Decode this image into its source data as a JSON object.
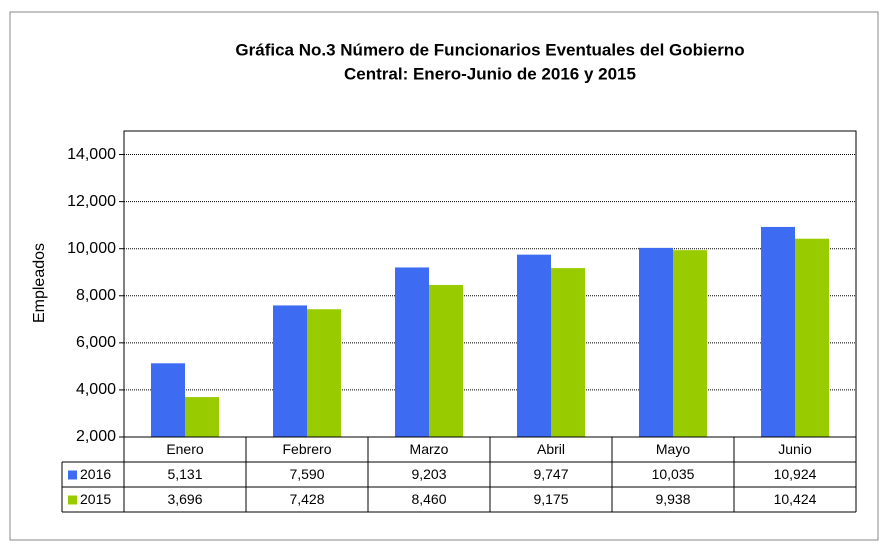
{
  "chart_data": {
    "type": "bar",
    "title": "Gráfica No.3 Número de Funcionarios Eventuales del Gobierno",
    "subtitle": "Central: Enero-Junio de 2016 y 2015",
    "y_label": "Empleados",
    "categories": [
      "Enero",
      "Febrero",
      "Marzo",
      "Abril",
      "Mayo",
      "Junio"
    ],
    "series": [
      {
        "name": "2016",
        "color": "#3d6cf2",
        "values": [
          5131,
          7590,
          9203,
          9747,
          10035,
          10924
        ],
        "value_labels": [
          "5,131",
          "7,590",
          "9,203",
          "9,747",
          "10,035",
          "10,924"
        ]
      },
      {
        "name": "2015",
        "color": "#99cc00",
        "values": [
          3696,
          7428,
          8460,
          9175,
          9938,
          10424
        ],
        "value_labels": [
          "3,696",
          "7,428",
          "8,460",
          "9,175",
          "9,938",
          "10,424"
        ]
      }
    ],
    "ylim": [
      2000,
      15000
    ],
    "yticks": [
      {
        "value": 2000,
        "label": "2,000"
      },
      {
        "value": 4000,
        "label": "4,000"
      },
      {
        "value": 6000,
        "label": "6,000"
      },
      {
        "value": 8000,
        "label": "8,000"
      },
      {
        "value": 10000,
        "label": "10,000"
      },
      {
        "value": 12000,
        "label": "12,000"
      },
      {
        "value": 14000,
        "label": "14,000"
      }
    ],
    "grid": true
  }
}
